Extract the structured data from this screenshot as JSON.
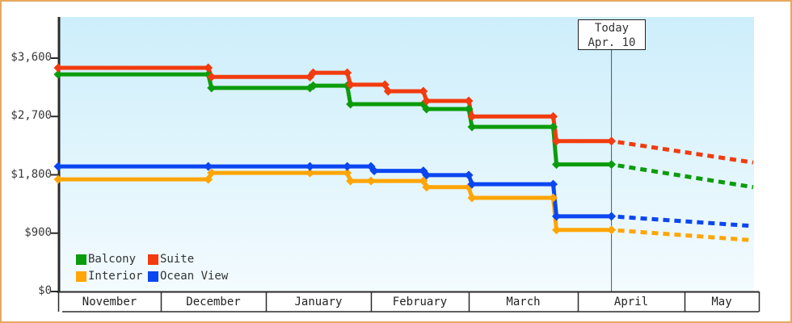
{
  "frame": {
    "border_color": "#e8a85f",
    "background": "#ffffff"
  },
  "chart_data": {
    "type": "line",
    "title": "",
    "subtype": "step-price-history",
    "grid": false,
    "plot_background": {
      "top": "#cdeefb",
      "bottom": "#f3fbfe"
    },
    "y_axis": {
      "ticks": [
        {
          "label": "$0",
          "value": 0
        },
        {
          "label": "$900",
          "value": 900
        },
        {
          "label": "$1,800",
          "value": 1800
        },
        {
          "label": "$2,700",
          "value": 2700
        },
        {
          "label": "$3,600",
          "value": 3600
        }
      ],
      "range": [
        0,
        3600
      ]
    },
    "x_axis": {
      "months": [
        "November",
        "December",
        "January",
        "February",
        "March",
        "April",
        "May"
      ],
      "month_days": [
        30,
        31,
        31,
        28,
        31,
        30,
        31
      ]
    },
    "today": {
      "line1": "Today",
      "line2": "Apr. 10",
      "month_index": 5,
      "day": 10
    },
    "series": [
      {
        "name": "Balcony",
        "color": "#0b9c0b",
        "points": [
          {
            "m": 0,
            "d": 1,
            "v": 3350
          },
          {
            "m": 1,
            "d": 15,
            "v": 3140
          },
          {
            "m": 2,
            "d": 14,
            "v": 3175
          },
          {
            "m": 2,
            "d": 25,
            "v": 2890
          },
          {
            "m": 3,
            "d": 16,
            "v": 2815
          },
          {
            "m": 4,
            "d": 1,
            "v": 2540
          },
          {
            "m": 4,
            "d": 25,
            "v": 1960
          },
          {
            "m": 5,
            "d": 10,
            "v": 1960
          }
        ],
        "projection_value": 1610
      },
      {
        "name": "Suite",
        "color": "#f23b0e",
        "points": [
          {
            "m": 0,
            "d": 1,
            "v": 3450
          },
          {
            "m": 1,
            "d": 15,
            "v": 3310
          },
          {
            "m": 2,
            "d": 14,
            "v": 3375
          },
          {
            "m": 2,
            "d": 25,
            "v": 3190
          },
          {
            "m": 3,
            "d": 5,
            "v": 3090
          },
          {
            "m": 3,
            "d": 16,
            "v": 2940
          },
          {
            "m": 4,
            "d": 1,
            "v": 2700
          },
          {
            "m": 4,
            "d": 25,
            "v": 2320
          },
          {
            "m": 5,
            "d": 10,
            "v": 2320
          }
        ],
        "projection_value": 1990
      },
      {
        "name": "Interior",
        "color": "#ffa505",
        "points": [
          {
            "m": 0,
            "d": 1,
            "v": 1730
          },
          {
            "m": 1,
            "d": 15,
            "v": 1830
          },
          {
            "m": 2,
            "d": 14,
            "v": 1830
          },
          {
            "m": 2,
            "d": 25,
            "v": 1705
          },
          {
            "m": 3,
            "d": 1,
            "v": 1705
          },
          {
            "m": 3,
            "d": 16,
            "v": 1610
          },
          {
            "m": 4,
            "d": 1,
            "v": 1445
          },
          {
            "m": 4,
            "d": 25,
            "v": 950
          },
          {
            "m": 5,
            "d": 10,
            "v": 950
          }
        ],
        "projection_value": 790
      },
      {
        "name": "Ocean View",
        "color": "#0b46f0",
        "points": [
          {
            "m": 0,
            "d": 1,
            "v": 1930
          },
          {
            "m": 1,
            "d": 15,
            "v": 1930
          },
          {
            "m": 2,
            "d": 14,
            "v": 1930
          },
          {
            "m": 2,
            "d": 25,
            "v": 1930
          },
          {
            "m": 3,
            "d": 1,
            "v": 1860
          },
          {
            "m": 3,
            "d": 16,
            "v": 1795
          },
          {
            "m": 4,
            "d": 1,
            "v": 1655
          },
          {
            "m": 4,
            "d": 25,
            "v": 1160
          },
          {
            "m": 5,
            "d": 10,
            "v": 1160
          }
        ],
        "projection_value": 1010
      }
    ],
    "legend": {
      "position": "bottom-left",
      "items": [
        {
          "label": "Balcony",
          "color": "#0b9c0b"
        },
        {
          "label": "Suite",
          "color": "#f23b0e"
        },
        {
          "label": "Interior",
          "color": "#ffa505"
        },
        {
          "label": "Ocean View",
          "color": "#0b46f0"
        }
      ]
    }
  }
}
